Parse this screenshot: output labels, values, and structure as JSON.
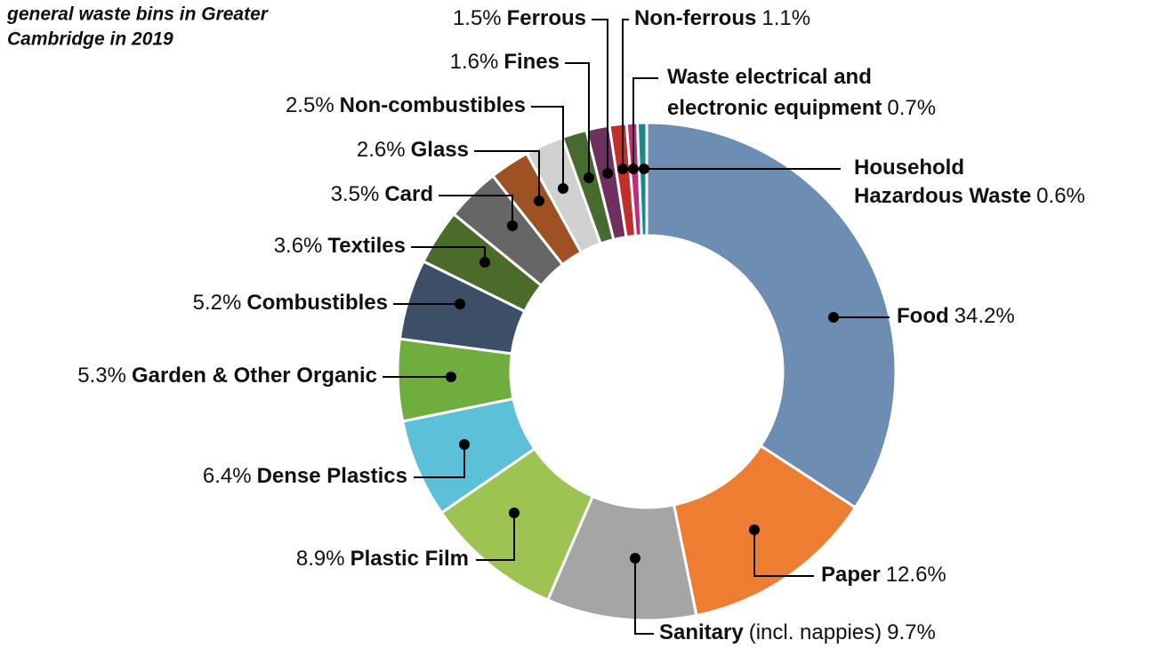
{
  "chart_data": {
    "type": "donut",
    "title_lines": [
      "general waste bins in Greater",
      "Cambridge in 2019"
    ],
    "categories": [
      "Food",
      "Paper",
      "Sanitary",
      "Plastic Film",
      "Dense Plastics",
      "Garden & Other Organic",
      "Combustibles",
      "Textiles",
      "Card",
      "Glass",
      "Non-combustibles",
      "Fines",
      "Ferrous",
      "Non-ferrous",
      "Waste electrical and electronic equipment",
      "Household Hazardous Waste"
    ],
    "annotations": [
      "(incl. nappies)"
    ],
    "values": [
      34.2,
      12.6,
      9.7,
      8.9,
      6.4,
      5.3,
      5.2,
      3.6,
      3.5,
      2.6,
      2.5,
      1.6,
      1.5,
      1.1,
      0.7,
      0.6
    ],
    "value_labels": [
      "34.2%",
      "12.6%",
      "9.7%",
      "8.9%",
      "6.4%",
      "5.3%",
      "5.2%",
      "3.6%",
      "3.5%",
      "2.6%",
      "2.5%",
      "1.6%",
      "1.5%",
      "1.1%",
      "0.7%",
      "0.6%"
    ],
    "colors": [
      "#6d8db3",
      "#ed7d31",
      "#a5a5a5",
      "#9dc352",
      "#5bc0d8",
      "#70ad3f",
      "#3d4f66",
      "#4a6b2a",
      "#666666",
      "#9e5223",
      "#d0d0d0",
      "#476b2e",
      "#6e3060",
      "#c0302a",
      "#c22a7e",
      "#168a8a"
    ]
  }
}
